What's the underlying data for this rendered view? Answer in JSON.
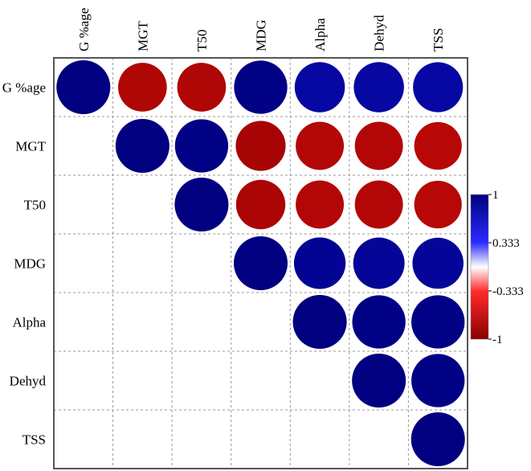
{
  "chart_data": {
    "type": "heatmap",
    "style": "correlation circle plot, upper triangle",
    "variables": [
      "G %age",
      "MGT",
      "T50",
      "MDG",
      "Alpha",
      "Dehyd",
      "TSS"
    ],
    "matrix": [
      [
        1.0,
        -0.82,
        -0.82,
        0.98,
        0.87,
        0.87,
        0.86
      ],
      [
        null,
        1.0,
        0.98,
        -0.86,
        -0.8,
        -0.8,
        -0.78
      ],
      [
        null,
        null,
        1.0,
        -0.84,
        -0.8,
        -0.8,
        -0.78
      ],
      [
        null,
        null,
        null,
        1.0,
        0.92,
        0.91,
        0.9
      ],
      [
        null,
        null,
        null,
        null,
        1.0,
        0.98,
        0.98
      ],
      [
        null,
        null,
        null,
        null,
        null,
        1.0,
        0.98
      ],
      [
        null,
        null,
        null,
        null,
        null,
        null,
        1.0
      ]
    ],
    "colorbar": {
      "range": [
        -1,
        1
      ],
      "tick_values": [
        1,
        0.333,
        -0.333,
        -1
      ],
      "tick_labels": [
        "1",
        "0.333",
        "-0.333",
        "-1"
      ],
      "colors": {
        "positive": "#000080",
        "zero": "#ffffff",
        "negative": "#8b0000",
        "mid_positive": "#1a1aff",
        "mid_negative": "#ee1111"
      }
    },
    "grid": true,
    "legend_position": "right"
  }
}
